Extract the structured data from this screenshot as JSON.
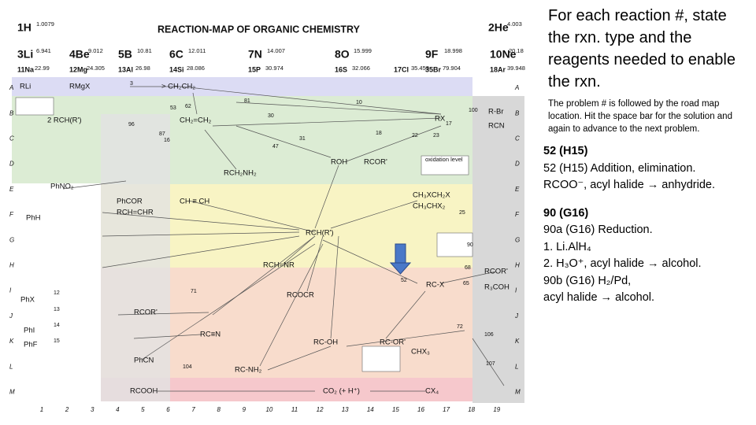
{
  "map": {
    "title": "REACTION-MAP OF ORGANIC CHEMISTRY",
    "elements": [
      {
        "symbol": "1H",
        "mass": "1.0079"
      },
      {
        "symbol": "2He",
        "mass": "4.003"
      },
      {
        "symbol": "3Li",
        "mass": "6.941"
      },
      {
        "symbol": "4Be",
        "mass": "9.012"
      },
      {
        "symbol": "5B",
        "mass": "10.81"
      },
      {
        "symbol": "6C",
        "mass": "12.011"
      },
      {
        "symbol": "7N",
        "mass": "14.007"
      },
      {
        "symbol": "8O",
        "mass": "15.999"
      },
      {
        "symbol": "9F",
        "mass": "18.998"
      },
      {
        "symbol": "10Ne",
        "mass": "20.18"
      },
      {
        "symbol": "11Na",
        "mass": "22.99"
      },
      {
        "symbol": "12Mg",
        "mass": "24.305"
      },
      {
        "symbol": "13Al",
        "mass": "26.98"
      },
      {
        "symbol": "14Si",
        "mass": "28.086"
      },
      {
        "symbol": "15P",
        "mass": "30.974"
      },
      {
        "symbol": "16S",
        "mass": "32.066"
      },
      {
        "symbol": "17Cl",
        "mass": "35.453"
      },
      {
        "symbol": "35Br",
        "mass": "79.904"
      },
      {
        "symbol": "18Ar",
        "mass": "39.948"
      }
    ],
    "row_letters": [
      "A",
      "B",
      "C",
      "D",
      "E",
      "F",
      "G",
      "H",
      "I",
      "J",
      "K",
      "L",
      "M"
    ],
    "column_numbers": [
      "1",
      "2",
      "3",
      "4",
      "5",
      "6",
      "7",
      "8",
      "9",
      "10",
      "11",
      "12",
      "13",
      "14",
      "15",
      "16",
      "17",
      "18",
      "19"
    ],
    "compounds": [
      "RLi",
      "RMgX",
      "> CH₂CH₂",
      "CH₂=CH₂",
      "RX",
      "ROH",
      "RCOR'",
      "RCH₂NH₂",
      "CH ≡ CH",
      "CH₃XCH₂X",
      "CH₃CHX₂",
      "RCH(R')",
      "RCH=NR",
      "RCOCR",
      "RC-X",
      "RCOR'",
      "RC≡N",
      "RC-OH",
      "RC-OR'",
      "RC-NH₂",
      "CO₂ (+ H⁺)",
      "CX₄",
      "RCOOH",
      "PhCN",
      "PhH",
      "PhNO₂",
      "PhX",
      "RCOR'",
      "R₃COH",
      "RCN",
      "R-Br",
      "oxidation level",
      "2 RCH(R')",
      "PhCOR",
      "RCH=CHR",
      "PhI",
      "PhF",
      "CHX₃"
    ],
    "reaction_numbers": [
      "3",
      "81",
      "10",
      "100",
      "53",
      "62",
      "30",
      "96",
      "16",
      "17",
      "87",
      "31",
      "18",
      "22",
      "23",
      "47",
      "71",
      "52",
      "25",
      "104",
      "107",
      "106",
      "72",
      "68",
      "65",
      "90",
      "12",
      "13",
      "14",
      "15"
    ]
  },
  "panel": {
    "heading": "For each reaction #, state the rxn. type and the reagents needed to enable the rxn.",
    "instructions": "The problem # is followed by the road map location.  Hit the space bar for the solution and again to advance to the next problem.",
    "problem_52": [
      "52 (H15)",
      "52 (H15)  Addition, elimination.",
      "RCOO⁻, acyl halide → anhydride."
    ],
    "problem_90": [
      "90  (G16)",
      "90a (G16)  Reduction.",
      "1.  Li.AlH₄",
      "2.  H₃O⁺, acyl halide → alcohol.",
      "90b (G16)  H₂/Pd,",
      "acyl halide → alcohol."
    ]
  }
}
